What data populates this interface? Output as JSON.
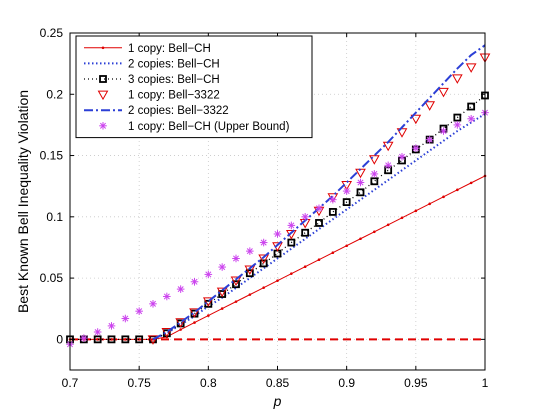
{
  "chart_data": {
    "type": "line",
    "xlabel": "p",
    "ylabel": "Best Known Bell Inequality Violation",
    "xlim": [
      0.7,
      1.0
    ],
    "ylim": [
      -0.025,
      0.25
    ],
    "xticks": [
      0.7,
      0.75,
      0.8,
      0.85,
      0.9,
      0.95,
      1.0
    ],
    "xtick_labels": [
      "0.7",
      "0.75",
      "0.8",
      "0.85",
      "0.9",
      "0.95",
      "1"
    ],
    "yticks": [
      0,
      0.05,
      0.1,
      0.15,
      0.2,
      0.25
    ],
    "ytick_labels": [
      "0",
      "0.05",
      "0.1",
      "0.15",
      "0.2",
      "0.25"
    ],
    "grid": true,
    "legend_position": "top-left",
    "reference_line": {
      "y": 0,
      "color": "#e00000",
      "style": "dashed"
    },
    "series": [
      {
        "name": "1 copy: Bell−CH",
        "color": "#e00000",
        "style": "solid-line-dots",
        "x": [
          0.7,
          0.71,
          0.72,
          0.73,
          0.74,
          0.75,
          0.76,
          0.77,
          0.78,
          0.79,
          0.8,
          0.81,
          0.82,
          0.83,
          0.84,
          0.85,
          0.86,
          0.87,
          0.88,
          0.89,
          0.9,
          0.91,
          0.92,
          0.93,
          0.94,
          0.95,
          0.96,
          0.97,
          0.98,
          0.99,
          1.0
        ],
        "y": [
          0,
          0,
          0,
          0,
          0,
          0,
          0,
          0.002,
          0.008,
          0.0137,
          0.0194,
          0.0251,
          0.0308,
          0.0365,
          0.0422,
          0.0479,
          0.0536,
          0.0593,
          0.065,
          0.0707,
          0.0764,
          0.0821,
          0.0878,
          0.0935,
          0.0992,
          0.1049,
          0.1106,
          0.1163,
          0.122,
          0.1277,
          0.1334
        ]
      },
      {
        "name": "2 copies: Bell−CH",
        "color": "#2b3fd6",
        "style": "dotted",
        "x": [
          0.76,
          0.77,
          0.78,
          0.79,
          0.8,
          0.81,
          0.82,
          0.83,
          0.84,
          0.85,
          0.86,
          0.87,
          0.88,
          0.89,
          0.9,
          0.91,
          0.92,
          0.93,
          0.94,
          0.95,
          0.96,
          0.97,
          0.98,
          0.99,
          1.0
        ],
        "y": [
          0,
          0.005,
          0.012,
          0.019,
          0.027,
          0.034,
          0.042,
          0.05,
          0.058,
          0.066,
          0.074,
          0.082,
          0.09,
          0.098,
          0.106,
          0.114,
          0.122,
          0.13,
          0.138,
          0.146,
          0.154,
          0.162,
          0.17,
          0.177,
          0.184
        ]
      },
      {
        "name": "3 copies: Bell−CH",
        "color": "#000000",
        "style": "dotted-squares",
        "x": [
          0.7,
          0.71,
          0.72,
          0.73,
          0.74,
          0.75,
          0.76,
          0.77,
          0.78,
          0.79,
          0.8,
          0.81,
          0.82,
          0.83,
          0.84,
          0.85,
          0.86,
          0.87,
          0.88,
          0.89,
          0.9,
          0.91,
          0.92,
          0.93,
          0.94,
          0.95,
          0.96,
          0.97,
          0.98,
          0.99,
          1.0
        ],
        "y": [
          0,
          0,
          0,
          0,
          0,
          0,
          0,
          0.005,
          0.013,
          0.021,
          0.029,
          0.037,
          0.045,
          0.054,
          0.062,
          0.07,
          0.079,
          0.087,
          0.095,
          0.104,
          0.112,
          0.12,
          0.129,
          0.138,
          0.146,
          0.155,
          0.163,
          0.172,
          0.181,
          0.19,
          0.199
        ]
      },
      {
        "name": "1 copy: Bell−3322",
        "color": "#e00000",
        "style": "triangles",
        "x": [
          0.76,
          0.77,
          0.78,
          0.79,
          0.8,
          0.81,
          0.82,
          0.83,
          0.84,
          0.85,
          0.86,
          0.87,
          0.88,
          0.89,
          0.9,
          0.91,
          0.92,
          0.93,
          0.94,
          0.95,
          0.96,
          0.97,
          0.98,
          0.99,
          1.0
        ],
        "y": [
          0,
          0.006,
          0.014,
          0.022,
          0.031,
          0.039,
          0.048,
          0.057,
          0.066,
          0.076,
          0.086,
          0.095,
          0.105,
          0.116,
          0.126,
          0.136,
          0.147,
          0.158,
          0.169,
          0.18,
          0.191,
          0.202,
          0.213,
          0.222,
          0.23
        ]
      },
      {
        "name": "2 copies: Bell−3322",
        "color": "#2b3fd6",
        "style": "dash-dot",
        "x": [
          0.76,
          0.77,
          0.78,
          0.79,
          0.8,
          0.81,
          0.82,
          0.83,
          0.84,
          0.85,
          0.86,
          0.87,
          0.88,
          0.89,
          0.9,
          0.91,
          0.92,
          0.93,
          0.94,
          0.95,
          0.96,
          0.97,
          0.98,
          0.99,
          1.0
        ],
        "y": [
          0,
          0.006,
          0.014,
          0.022,
          0.031,
          0.04,
          0.049,
          0.058,
          0.067,
          0.077,
          0.087,
          0.097,
          0.107,
          0.117,
          0.128,
          0.139,
          0.15,
          0.161,
          0.173,
          0.185,
          0.197,
          0.209,
          0.221,
          0.232,
          0.24
        ]
      },
      {
        "name": "1 copy: Bell−CH (Upper Bound)",
        "color": "#cc44ee",
        "style": "asterisks",
        "x": [
          0.7,
          0.71,
          0.72,
          0.73,
          0.74,
          0.75,
          0.76,
          0.77,
          0.78,
          0.79,
          0.8,
          0.81,
          0.82,
          0.83,
          0.84,
          0.85,
          0.86,
          0.87,
          0.88,
          0.89,
          0.9,
          0.91,
          0.92,
          0.93,
          0.94,
          0.95,
          0.96,
          0.97,
          0.98,
          0.99,
          1.0
        ],
        "y": [
          -0.004,
          0.001,
          0.006,
          0.011,
          0.017,
          0.023,
          0.029,
          0.035,
          0.041,
          0.047,
          0.053,
          0.059,
          0.066,
          0.072,
          0.079,
          0.086,
          0.093,
          0.1,
          0.107,
          0.114,
          0.121,
          0.128,
          0.135,
          0.142,
          0.149,
          0.156,
          0.163,
          0.17,
          0.175,
          0.18,
          0.185
        ]
      }
    ]
  }
}
